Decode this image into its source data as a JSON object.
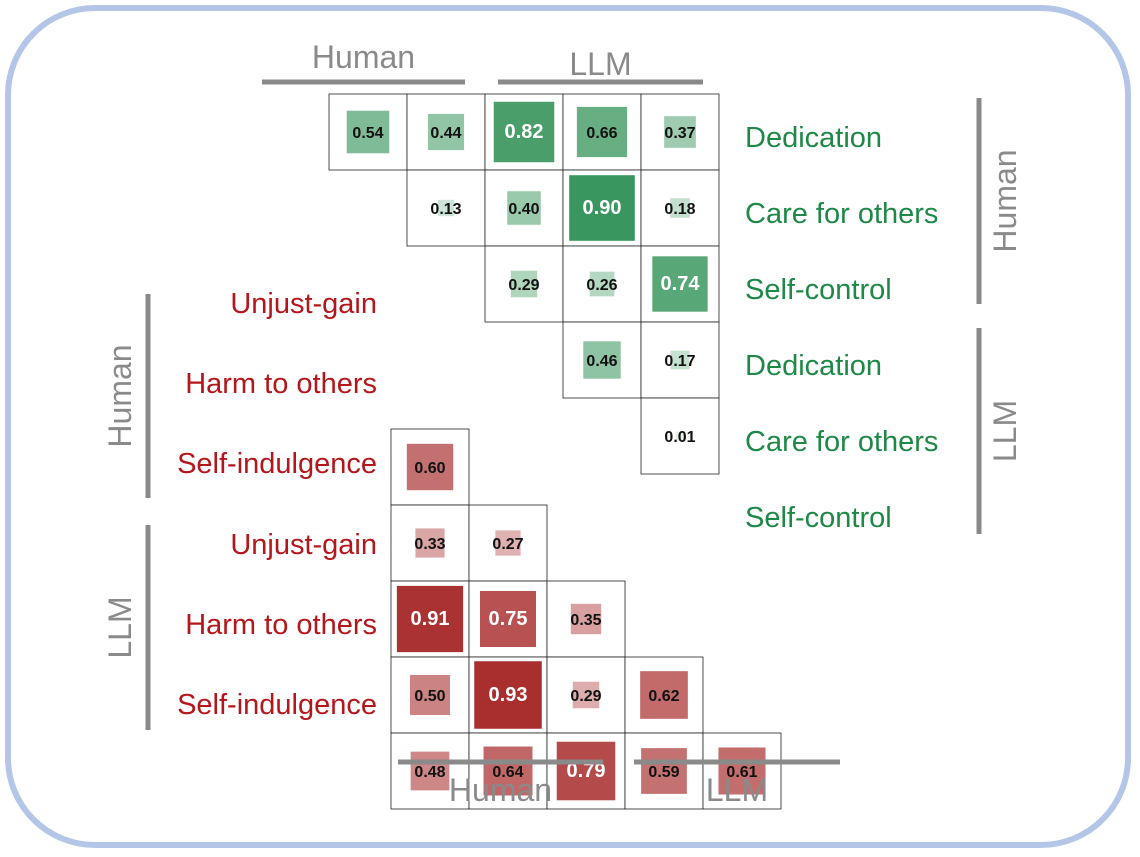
{
  "chart_data": {
    "type": "heatmap",
    "groups": [
      "Human",
      "LLM"
    ],
    "colors": {
      "positive": "#1e8847",
      "negative": "#a01818",
      "frame": "#b4c6e7",
      "bracket": "#8a8a8a",
      "grid": "#222222"
    },
    "positive": {
      "columns": [
        {
          "group": "Human",
          "index": 0
        },
        {
          "group": "Human",
          "index": 1
        },
        {
          "group": "LLM",
          "index": 0
        },
        {
          "group": "LLM",
          "index": 1
        },
        {
          "group": "LLM",
          "index": 2
        }
      ],
      "rows": [
        {
          "group": "Human",
          "label": "Dedication"
        },
        {
          "group": "Human",
          "label": "Care for others"
        },
        {
          "group": "Human",
          "label": "Self-control"
        },
        {
          "group": "LLM",
          "label": "Dedication"
        },
        {
          "group": "LLM",
          "label": "Care for others"
        },
        {
          "group": "LLM",
          "label": "Self-control"
        }
      ],
      "cells": [
        {
          "row": 0,
          "col": 0,
          "value": 0.54,
          "text": "0.54"
        },
        {
          "row": 0,
          "col": 1,
          "value": 0.44,
          "text": "0.44"
        },
        {
          "row": 0,
          "col": 2,
          "value": 0.82,
          "text": "0.82"
        },
        {
          "row": 0,
          "col": 3,
          "value": 0.66,
          "text": "0.66"
        },
        {
          "row": 0,
          "col": 4,
          "value": 0.37,
          "text": "0.37"
        },
        {
          "row": 1,
          "col": 1,
          "value": 0.13,
          "text": "0.13"
        },
        {
          "row": 1,
          "col": 2,
          "value": 0.4,
          "text": "0.40"
        },
        {
          "row": 1,
          "col": 3,
          "value": 0.9,
          "text": "0.90"
        },
        {
          "row": 1,
          "col": 4,
          "value": 0.18,
          "text": "0.18"
        },
        {
          "row": 2,
          "col": 2,
          "value": 0.29,
          "text": "0.29"
        },
        {
          "row": 2,
          "col": 3,
          "value": 0.26,
          "text": "0.26"
        },
        {
          "row": 2,
          "col": 4,
          "value": 0.74,
          "text": "0.74"
        },
        {
          "row": 3,
          "col": 3,
          "value": 0.46,
          "text": "0.46"
        },
        {
          "row": 3,
          "col": 4,
          "value": 0.17,
          "text": "0.17"
        },
        {
          "row": 4,
          "col": 4,
          "value": 0.01,
          "text": "0.01"
        }
      ]
    },
    "negative": {
      "columns": [
        {
          "group": "Human",
          "index": 0
        },
        {
          "group": "Human",
          "index": 1
        },
        {
          "group": "LLM",
          "index": 0
        },
        {
          "group": "LLM",
          "index": 1
        },
        {
          "group": "LLM",
          "index": 2
        }
      ],
      "rows": [
        {
          "group": "Human",
          "label": "Unjust-gain"
        },
        {
          "group": "Human",
          "label": "Harm to others"
        },
        {
          "group": "Human",
          "label": "Self-indulgence"
        },
        {
          "group": "LLM",
          "label": "Unjust-gain"
        },
        {
          "group": "LLM",
          "label": "Harm to others"
        },
        {
          "group": "LLM",
          "label": "Self-indulgence"
        }
      ],
      "cells": [
        {
          "row": 1,
          "col": 0,
          "value": 0.6,
          "text": "0.60"
        },
        {
          "row": 2,
          "col": 0,
          "value": 0.33,
          "text": "0.33"
        },
        {
          "row": 2,
          "col": 1,
          "value": 0.27,
          "text": "0.27"
        },
        {
          "row": 3,
          "col": 0,
          "value": 0.91,
          "text": "0.91"
        },
        {
          "row": 3,
          "col": 1,
          "value": 0.75,
          "text": "0.75"
        },
        {
          "row": 3,
          "col": 2,
          "value": 0.35,
          "text": "0.35"
        },
        {
          "row": 4,
          "col": 0,
          "value": 0.5,
          "text": "0.50"
        },
        {
          "row": 4,
          "col": 1,
          "value": 0.93,
          "text": "0.93"
        },
        {
          "row": 4,
          "col": 2,
          "value": 0.29,
          "text": "0.29"
        },
        {
          "row": 4,
          "col": 3,
          "value": 0.62,
          "text": "0.62"
        },
        {
          "row": 5,
          "col": 0,
          "value": 0.48,
          "text": "0.48"
        },
        {
          "row": 5,
          "col": 1,
          "value": 0.64,
          "text": "0.64"
        },
        {
          "row": 5,
          "col": 2,
          "value": 0.79,
          "text": "0.79"
        },
        {
          "row": 5,
          "col": 3,
          "value": 0.59,
          "text": "0.59"
        },
        {
          "row": 5,
          "col": 4,
          "value": 0.61,
          "text": "0.61"
        }
      ]
    }
  }
}
